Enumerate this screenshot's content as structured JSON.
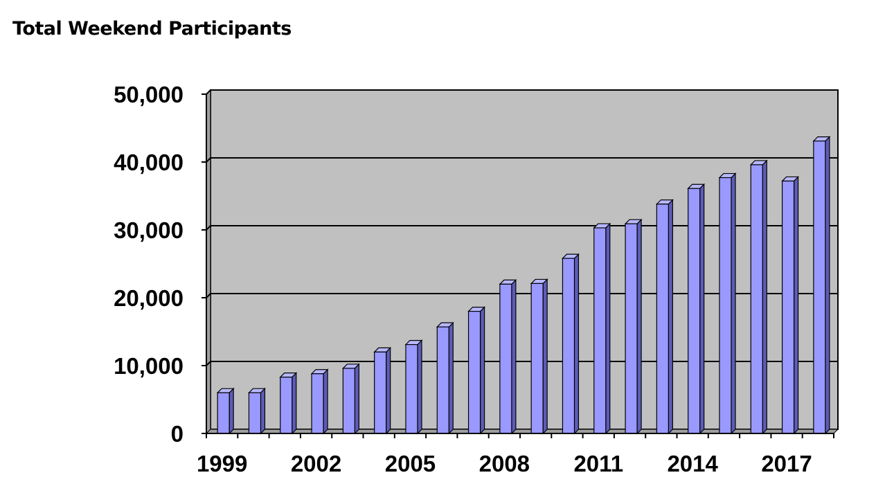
{
  "chart_data": {
    "type": "bar",
    "title": "Total Weekend Participants",
    "xlabel": "",
    "ylabel": "",
    "categories": [
      "1999",
      "2000",
      "2001",
      "2002",
      "2003",
      "2004",
      "2005",
      "2006",
      "2007",
      "2008",
      "2009",
      "2010",
      "2011",
      "2012",
      "2013",
      "2014",
      "2015",
      "2016",
      "2017",
      "2018"
    ],
    "x_tick_labels": [
      "1999",
      "2002",
      "2005",
      "2008",
      "2011",
      "2014",
      "2017"
    ],
    "y_tick_labels": [
      "0",
      "10,000",
      "20,000",
      "30,000",
      "40,000",
      "50,000"
    ],
    "y_ticks": [
      0,
      10000,
      20000,
      30000,
      40000,
      50000
    ],
    "values": [
      6000,
      6000,
      8300,
      8800,
      9600,
      12000,
      13100,
      15700,
      18000,
      22000,
      22100,
      25800,
      30300,
      30900,
      33800,
      36100,
      37700,
      39600,
      37200,
      43100
    ],
    "ylim": [
      0,
      50000
    ],
    "grid": true,
    "legend": "none",
    "colors": {
      "bar_front": "#9999ff",
      "bar_side": "#5c5cb8",
      "bar_top": "#b8b8ff",
      "plot_background": "#c0c0c0",
      "grid": "#000000"
    }
  }
}
